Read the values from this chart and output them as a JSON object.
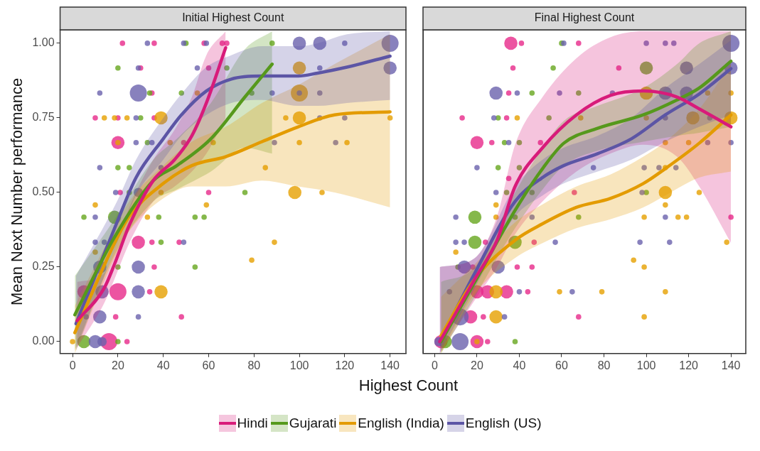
{
  "chart_data": [
    {
      "type": "line",
      "title": "Initial Highest Count",
      "xlabel": "Highest Count",
      "ylabel": "Mean Next Number performance",
      "xlim": [
        -5.5,
        147
      ],
      "xticks": [
        0,
        20,
        40,
        60,
        80,
        100,
        120,
        140
      ],
      "ylim": [
        -0.04,
        1.045
      ],
      "yticks": [
        {
          "value": 0,
          "label": "0.00"
        },
        {
          "value": 0.25,
          "label": "0.25"
        },
        {
          "value": 0.5,
          "label": "0.50"
        },
        {
          "value": 0.75,
          "label": "0.75"
        },
        {
          "value": 1,
          "label": "1.00"
        }
      ],
      "grid": false,
      "legend": "bottom",
      "series": [
        {
          "type": "bubble",
          "color": "#e7298a",
          "x": [
            22,
            36,
            58,
            66,
            68,
            30,
            60,
            35,
            10,
            20,
            36,
            20,
            49,
            21,
            60,
            29,
            35,
            47,
            36,
            5,
            20,
            34,
            19,
            48,
            16,
            24
          ],
          "values": [
            1,
            1,
            1,
            1,
            1,
            0.917,
            0.917,
            0.833,
            0.75,
            0.75,
            0.75,
            0.667,
            0.667,
            0.5,
            0.5,
            0.333,
            0.333,
            0.333,
            0.25,
            0.167,
            0.167,
            0.167,
            0.083,
            0.083,
            0,
            0
          ],
          "sizes": [
            0.1,
            0.1,
            0.1,
            0.1,
            0.1,
            0.1,
            0.1,
            0.1,
            0.1,
            0.1,
            0.1,
            0.6,
            0.1,
            0.1,
            0.1,
            0.6,
            0.1,
            0.1,
            0.1,
            0.6,
            1,
            0.1,
            0.1,
            0.1,
            1,
            0.1
          ]
        },
        {
          "type": "bubble",
          "color": "#66a61e",
          "x": [
            50,
            88,
            20,
            68,
            34,
            48,
            79,
            30,
            33,
            20,
            25,
            25,
            76,
            5,
            18.5,
            38,
            54,
            58,
            39,
            20,
            54,
            5,
            20
          ],
          "values": [
            1,
            1,
            0.917,
            0.917,
            0.833,
            0.833,
            0.833,
            0.75,
            0.667,
            0.583,
            0.583,
            0.5,
            0.5,
            0.417,
            0.417,
            0.417,
            0.417,
            0.417,
            0.333,
            0.25,
            0.25,
            0,
            0
          ],
          "sizes": [
            0.1,
            0.1,
            0.1,
            0.1,
            0.1,
            0.1,
            0.1,
            0.1,
            0.1,
            0.1,
            0.1,
            0.1,
            0.1,
            0.1,
            0.6,
            0.1,
            0.1,
            0.1,
            0.1,
            0.1,
            0.1,
            0.6,
            0.1
          ]
        },
        {
          "type": "bubble",
          "color": "#e6a000",
          "x": [
            100,
            55,
            100,
            14,
            18.5,
            24,
            39,
            94,
            100,
            140,
            20,
            43,
            62,
            100,
            121,
            85,
            39,
            98,
            110,
            10,
            59,
            33,
            89,
            10,
            79,
            39,
            0
          ],
          "values": [
            0.917,
            0.833,
            0.833,
            0.75,
            0.75,
            0.75,
            0.75,
            0.75,
            0.75,
            0.75,
            0.667,
            0.667,
            0.667,
            0.667,
            0.667,
            0.583,
            0.5,
            0.5,
            0.5,
            0.458,
            0.458,
            0.417,
            0.333,
            0.3,
            0.273,
            0.167,
            0
          ],
          "sizes": [
            0.6,
            0.1,
            1,
            0.1,
            0.1,
            0.1,
            0.6,
            0.1,
            0.6,
            0.1,
            0.1,
            0.1,
            0.1,
            0.1,
            0.1,
            0.1,
            0.1,
            0.6,
            0.1,
            0.1,
            0.1,
            0.1,
            0.1,
            0.1,
            0.1,
            0.6,
            0.1
          ]
        },
        {
          "type": "bubble",
          "color": "#6a62ad",
          "x": [
            33,
            49,
            59,
            100,
            109,
            120,
            140,
            29,
            55,
            109,
            140,
            12,
            29,
            88,
            100,
            109,
            28,
            109,
            120,
            28,
            35,
            89,
            116,
            12,
            39,
            19,
            29,
            10,
            10,
            14,
            49,
            12,
            29,
            13,
            29,
            6,
            12,
            29,
            10,
            13
          ],
          "values": [
            1,
            1,
            1,
            1,
            1,
            1,
            1,
            0.917,
            0.917,
            0.917,
            0.917,
            0.833,
            0.833,
            0.833,
            0.833,
            0.833,
            0.75,
            0.75,
            0.75,
            0.667,
            0.667,
            0.667,
            0.667,
            0.583,
            0.583,
            0.5,
            0.5,
            0.417,
            0.333,
            0.333,
            0.333,
            0.25,
            0.25,
            0.167,
            0.167,
            0.083,
            0.083,
            0.083,
            0,
            0
          ],
          "sizes": [
            0.1,
            0.1,
            0.1,
            0.6,
            0.6,
            0.1,
            1,
            0.1,
            0.1,
            0.1,
            0.6,
            0.1,
            1,
            0.1,
            0.1,
            0.1,
            0.1,
            0.1,
            0.1,
            0.1,
            0.1,
            0.1,
            0.1,
            0.1,
            0.1,
            0.1,
            0.3,
            0.1,
            0.1,
            0.1,
            0.1,
            0.6,
            0.6,
            0.6,
            0.6,
            0.1,
            0.6,
            0.1,
            0.6,
            0.3
          ]
        },
        {
          "type": "line",
          "name": "Hindi",
          "color": "#d81b7a",
          "x": [
            2,
            14,
            18.5,
            25,
            35.6,
            45,
            52.6,
            59,
            67.5
          ],
          "values": [
            0.07,
            0.18,
            0.26,
            0.39,
            0.54,
            0.61,
            0.69,
            0.8,
            0.985
          ],
          "lower": [
            -0.02,
            0.13,
            0.21,
            0.33,
            0.47,
            0.52,
            0.57,
            0.63,
            0.75
          ],
          "upper": [
            0.2,
            0.23,
            0.31,
            0.45,
            0.61,
            0.71,
            0.82,
            0.96,
            1.04
          ]
        },
        {
          "type": "line",
          "name": "Gujarati",
          "color": "#56991c",
          "x": [
            1,
            18.5,
            35.6,
            46,
            61,
            76,
            88
          ],
          "values": [
            0.09,
            0.35,
            0.54,
            0.59,
            0.68,
            0.82,
            0.93
          ],
          "lower": [
            -0.03,
            0.29,
            0.47,
            0.51,
            0.57,
            0.65,
            0.63
          ],
          "upper": [
            0.22,
            0.41,
            0.61,
            0.68,
            0.8,
            0.98,
            1.04
          ]
        },
        {
          "type": "line",
          "name": "English (India)",
          "color": "#e39b00",
          "x": [
            1,
            18.5,
            25,
            40,
            52.6,
            67.5,
            83.5,
            99.5,
            115.5,
            140
          ],
          "values": [
            0.03,
            0.33,
            0.42,
            0.53,
            0.59,
            0.62,
            0.67,
            0.72,
            0.76,
            0.77
          ],
          "lower": [
            -0.04,
            0.28,
            0.37,
            0.48,
            0.52,
            0.52,
            0.54,
            0.52,
            0.5,
            0.45
          ],
          "upper": [
            0.12,
            0.38,
            0.47,
            0.59,
            0.67,
            0.72,
            0.8,
            0.86,
            0.93,
            1.03
          ]
        },
        {
          "type": "line",
          "name": "English (US)",
          "color": "#5c55a5",
          "x": [
            1.5,
            19.6,
            28,
            40,
            48,
            59,
            70,
            83.5,
            99.5,
            108,
            121,
            140
          ],
          "values": [
            0.06,
            0.4,
            0.55,
            0.68,
            0.76,
            0.84,
            0.88,
            0.89,
            0.89,
            0.9,
            0.92,
            0.957
          ],
          "lower": [
            -0.03,
            0.33,
            0.49,
            0.61,
            0.69,
            0.76,
            0.8,
            0.81,
            0.79,
            0.79,
            0.8,
            0.81
          ],
          "upper": [
            0.22,
            0.47,
            0.61,
            0.75,
            0.83,
            0.92,
            0.96,
            0.99,
            0.99,
            1,
            1.03,
            1.04
          ]
        }
      ]
    },
    {
      "type": "line",
      "title": "Final Highest Count",
      "xlim": [
        -5.5,
        147
      ],
      "xticks": [
        0,
        20,
        40,
        60,
        80,
        100,
        120,
        140
      ],
      "ylim": [
        -0.04,
        1.045
      ],
      "grid": false,
      "tick_labels": "x",
      "series": [
        {
          "type": "bubble",
          "color": "#e7298a",
          "x": [
            36,
            41,
            68,
            37,
            87,
            35,
            13,
            34,
            20,
            27,
            50,
            35,
            66,
            140,
            24,
            47,
            18,
            39,
            46,
            20,
            25,
            34,
            44,
            17,
            23,
            68,
            3,
            20,
            25
          ],
          "values": [
            1,
            1,
            1,
            0.917,
            0.917,
            0.833,
            0.75,
            0.75,
            0.667,
            0.667,
            0.667,
            0.547,
            0.5,
            0.417,
            0.333,
            0.333,
            0.25,
            0.25,
            0.25,
            0.167,
            0.167,
            0.167,
            0.167,
            0.083,
            0.083,
            0.083,
            0,
            0,
            0
          ],
          "sizes": [
            0.6,
            0.1,
            0.1,
            0.1,
            0.1,
            0.1,
            0.1,
            0.1,
            0.6,
            0.1,
            0.1,
            0.1,
            0.1,
            0.1,
            0.1,
            0.1,
            0.1,
            0.1,
            0.1,
            0.6,
            0.6,
            0.6,
            0.1,
            0.6,
            0.1,
            0.1,
            0.6,
            0.6,
            0.1
          ]
        },
        {
          "type": "bubble",
          "color": "#66a61e",
          "x": [
            60,
            56,
            100,
            46,
            68,
            30,
            54,
            33,
            40,
            30,
            40,
            34,
            46,
            100,
            19,
            38,
            68,
            19,
            38,
            11,
            5,
            38
          ],
          "values": [
            1,
            0.917,
            0.917,
            0.833,
            0.833,
            0.75,
            0.75,
            0.667,
            0.667,
            0.583,
            0.583,
            0.5,
            0.5,
            0.5,
            0.417,
            0.417,
            0.417,
            0.333,
            0.333,
            0.25,
            0,
            0
          ],
          "sizes": [
            0.1,
            0.1,
            0.6,
            0.1,
            0.1,
            0.1,
            0.1,
            0.1,
            0.1,
            0.1,
            0.1,
            0.1,
            0.1,
            0.1,
            0.6,
            0.1,
            0.1,
            0.6,
            0.6,
            0.1,
            0.6,
            0.1
          ]
        },
        {
          "type": "bubble",
          "color": "#e6a000",
          "x": [
            100,
            129,
            140,
            39,
            69,
            100,
            122,
            140,
            109,
            120,
            109,
            109,
            125,
            29,
            109,
            29,
            99,
            115,
            119,
            10,
            138,
            94,
            99,
            29,
            59,
            79,
            109,
            29,
            99,
            20
          ],
          "values": [
            0.833,
            0.833,
            0.833,
            0.75,
            0.75,
            0.75,
            0.75,
            0.75,
            0.667,
            0.667,
            0.583,
            0.5,
            0.5,
            0.458,
            0.458,
            0.417,
            0.417,
            0.417,
            0.417,
            0.3,
            0.333,
            0.273,
            0.25,
            0.167,
            0.167,
            0.167,
            0.167,
            0.083,
            0.083,
            0
          ],
          "sizes": [
            0.6,
            0.1,
            0.1,
            0.1,
            0.1,
            0.1,
            0.6,
            0.6,
            0.1,
            0.1,
            0.1,
            0.6,
            0.1,
            0.1,
            0.1,
            0.1,
            0.1,
            0.1,
            0.1,
            0.1,
            0.1,
            0.1,
            0.1,
            0.6,
            0.1,
            0.1,
            0.1,
            0.6,
            0.1,
            0.1
          ]
        },
        {
          "type": "bubble",
          "color": "#6a62ad",
          "x": [
            61,
            100,
            109,
            113,
            140,
            119,
            140,
            29,
            39,
            59,
            84,
            109,
            119,
            28,
            109,
            130,
            35,
            129,
            140,
            20,
            75,
            99,
            106,
            114,
            29,
            98,
            10,
            46,
            109,
            10,
            14,
            57,
            97,
            111,
            14,
            30,
            7,
            40,
            65,
            12,
            33,
            2,
            12
          ],
          "values": [
            1,
            1,
            1,
            1,
            1,
            0.917,
            0.917,
            0.833,
            0.833,
            0.833,
            0.833,
            0.833,
            0.833,
            0.75,
            0.75,
            0.75,
            0.667,
            0.667,
            0.667,
            0.583,
            0.583,
            0.583,
            0.583,
            0.583,
            0.5,
            0.5,
            0.417,
            0.417,
            0.417,
            0.333,
            0.333,
            0.333,
            0.333,
            0.333,
            0.25,
            0.25,
            0.167,
            0.167,
            0.167,
            0.083,
            0.083,
            0,
            0
          ],
          "sizes": [
            0.1,
            0.1,
            0.1,
            0.1,
            1,
            0.6,
            0.6,
            0.6,
            0.1,
            0.1,
            0.1,
            0.6,
            0.6,
            0.1,
            0.1,
            0.1,
            0.1,
            0.1,
            0.1,
            0.1,
            0.1,
            0.1,
            0.1,
            0.1,
            0.1,
            0.1,
            0.1,
            0.1,
            0.1,
            0.1,
            0.1,
            0.1,
            0.1,
            0.1,
            0.6,
            0.6,
            0.1,
            0.1,
            0.1,
            1,
            0.1,
            0.3,
            1
          ]
        },
        {
          "type": "line",
          "color": "#d81b7a",
          "x": [
            2.4,
            19,
            29.5,
            38,
            51,
            67,
            83,
            98.6,
            114.5,
            125,
            140
          ],
          "values": [
            0,
            0.21,
            0.34,
            0.52,
            0.65,
            0.76,
            0.825,
            0.84,
            0.82,
            0.78,
            0.72
          ],
          "lower": [
            -0.04,
            0.14,
            0.25,
            0.36,
            0.47,
            0.57,
            0.63,
            0.66,
            0.62,
            0.52,
            0.33
          ],
          "upper": [
            0.25,
            0.28,
            0.42,
            0.66,
            0.82,
            0.95,
            1.02,
            1.04,
            1.04,
            1.04,
            1.04
          ]
        },
        {
          "type": "line",
          "color": "#56991c",
          "x": [
            3,
            19,
            38,
            51,
            61,
            77,
            98.6,
            114.5,
            125,
            140
          ],
          "values": [
            0,
            0.2,
            0.44,
            0.58,
            0.665,
            0.715,
            0.76,
            0.81,
            0.85,
            0.94
          ],
          "lower": [
            -0.04,
            0.15,
            0.38,
            0.51,
            0.59,
            0.64,
            0.67,
            0.69,
            0.7,
            0.72
          ],
          "upper": [
            0.2,
            0.25,
            0.5,
            0.65,
            0.74,
            0.79,
            0.85,
            0.93,
            1,
            1.04
          ]
        },
        {
          "type": "line",
          "color": "#e39b00",
          "x": [
            3,
            19,
            38,
            51,
            67,
            83,
            98.6,
            109,
            125,
            140
          ],
          "values": [
            0.02,
            0.21,
            0.34,
            0.395,
            0.45,
            0.48,
            0.53,
            0.58,
            0.665,
            0.76
          ],
          "lower": [
            -0.04,
            0.16,
            0.28,
            0.33,
            0.38,
            0.41,
            0.45,
            0.49,
            0.55,
            0.57
          ],
          "upper": [
            0.15,
            0.26,
            0.4,
            0.46,
            0.52,
            0.56,
            0.62,
            0.67,
            0.78,
            0.93
          ]
        },
        {
          "type": "line",
          "color": "#5c55a5",
          "x": [
            2.4,
            19,
            38,
            51,
            61,
            77,
            93,
            109,
            125,
            140
          ],
          "values": [
            0,
            0.23,
            0.47,
            0.55,
            0.59,
            0.63,
            0.68,
            0.76,
            0.83,
            0.915
          ],
          "lower": [
            -0.04,
            0.18,
            0.42,
            0.49,
            0.53,
            0.57,
            0.61,
            0.67,
            0.72,
            0.76
          ],
          "upper": [
            0.25,
            0.28,
            0.52,
            0.61,
            0.65,
            0.69,
            0.75,
            0.85,
            0.93,
            1.01
          ]
        }
      ]
    }
  ]
}
